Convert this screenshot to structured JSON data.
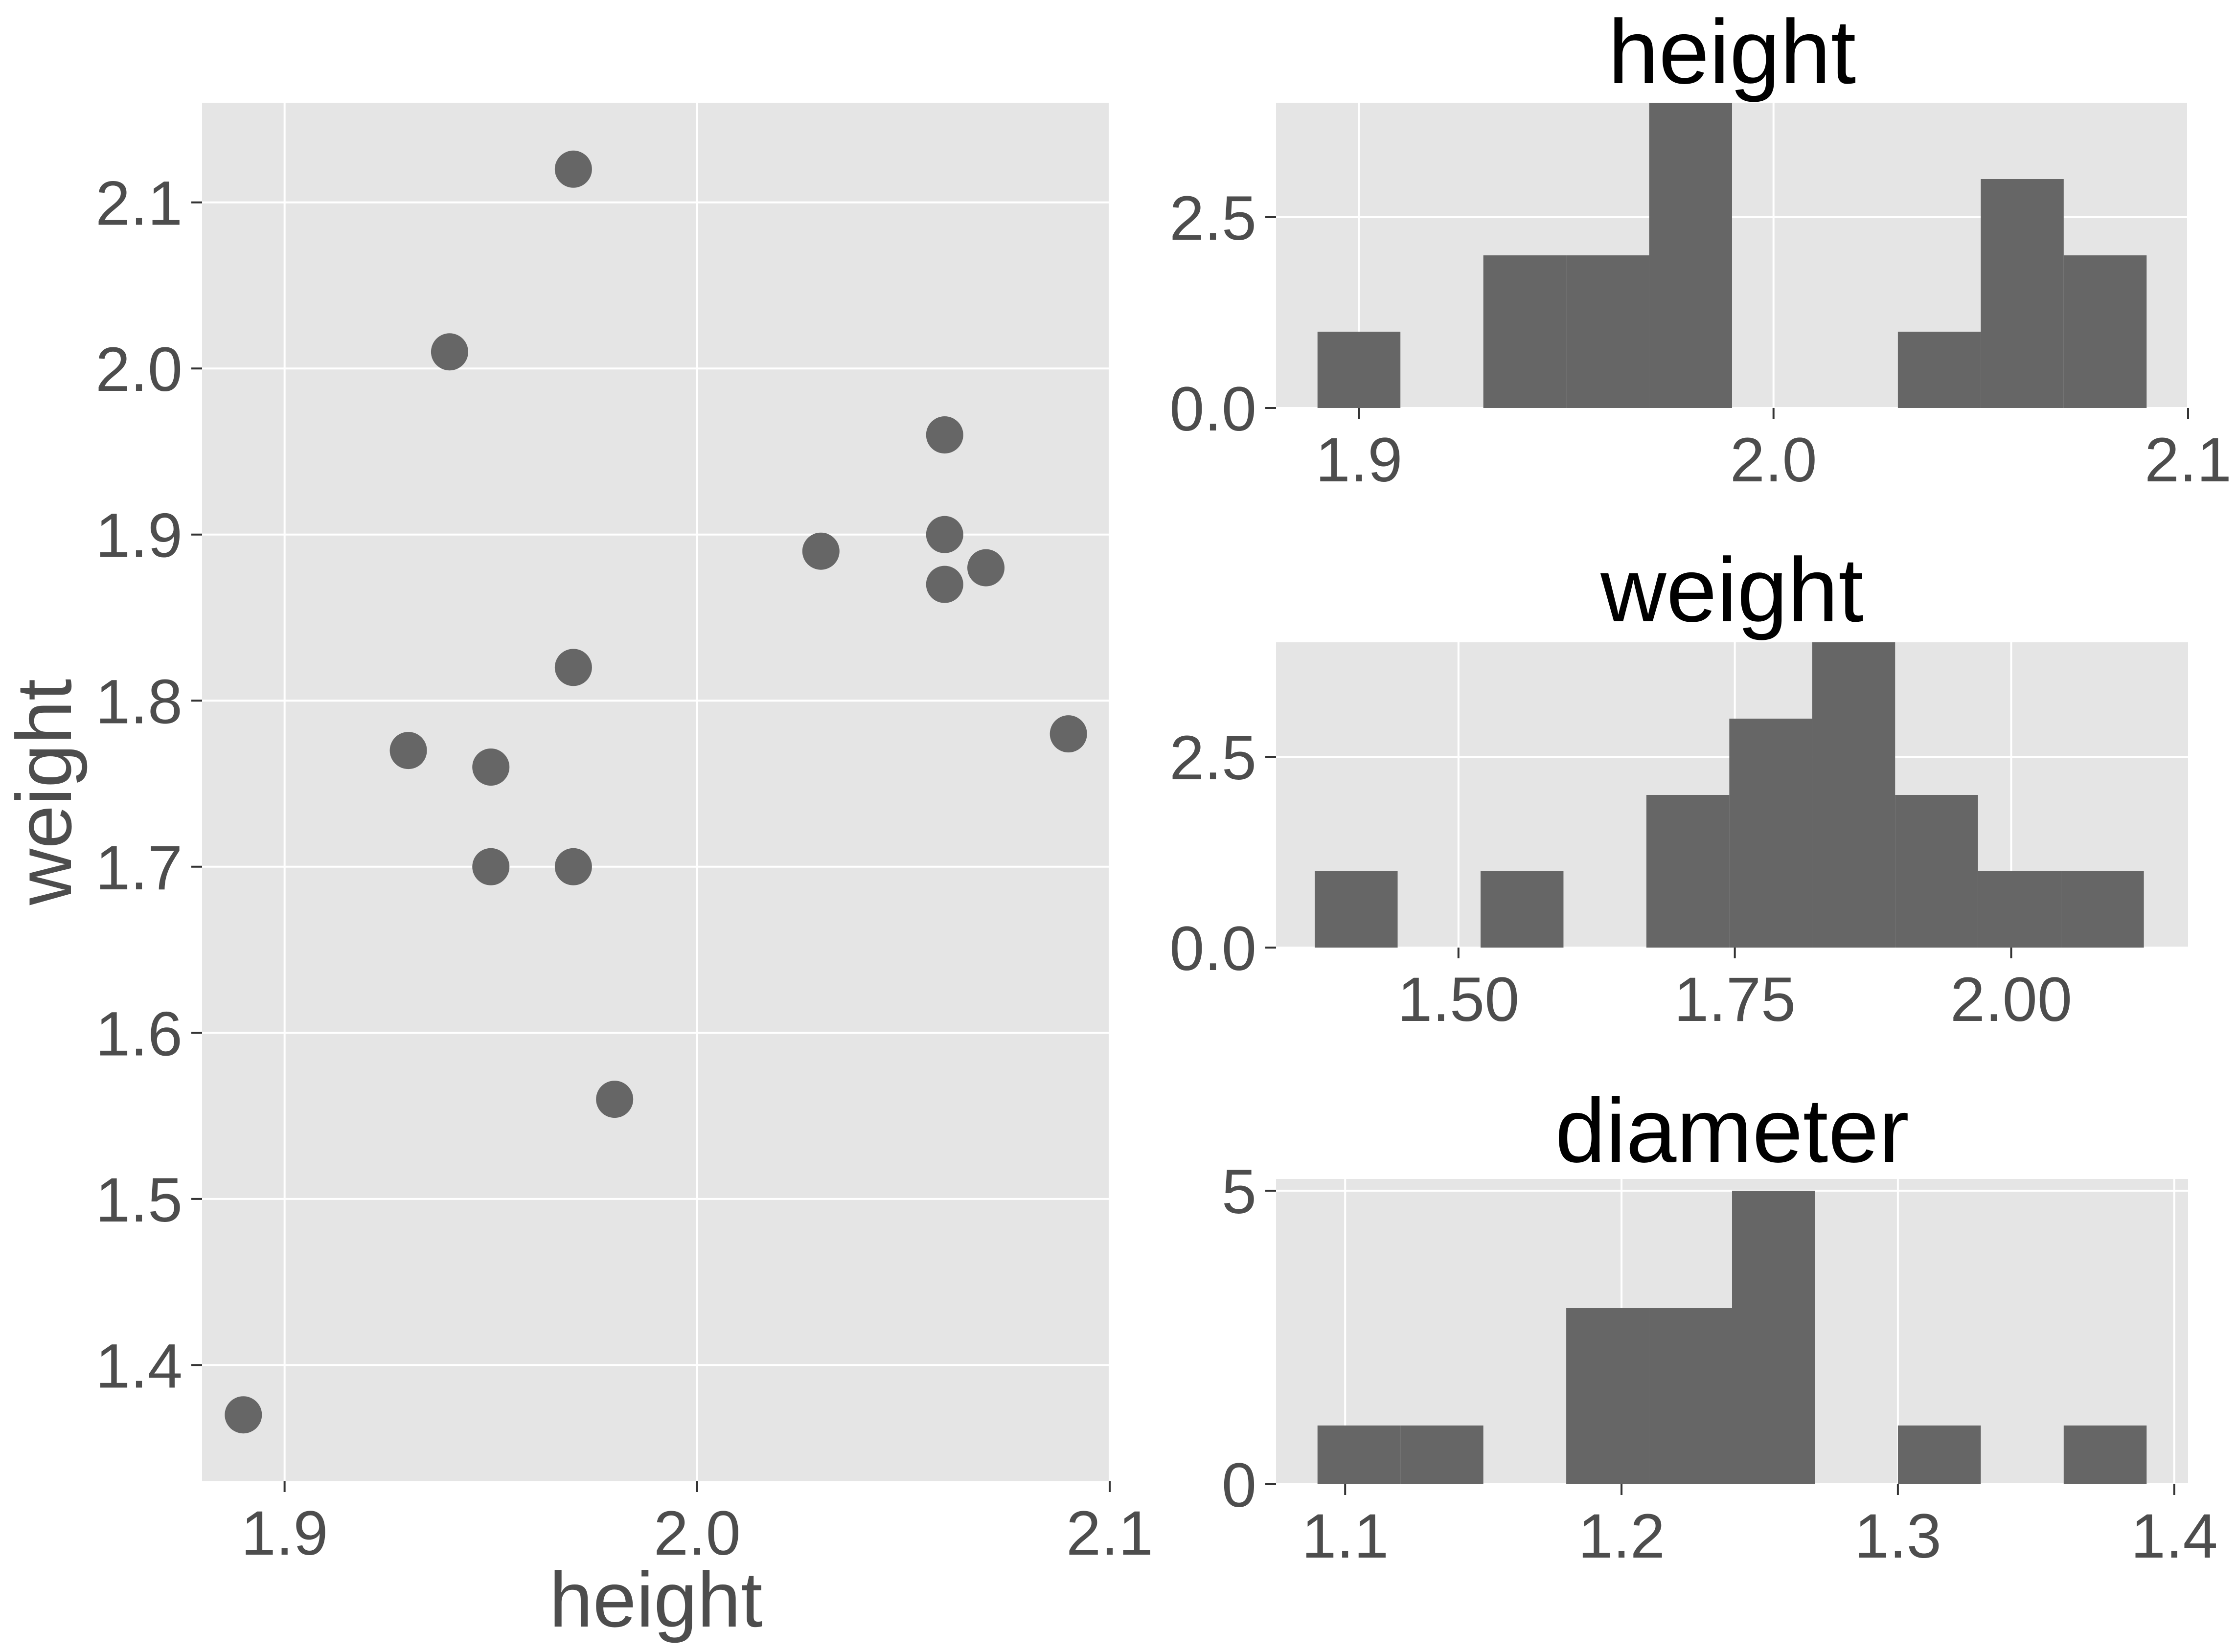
{
  "chart_data": [
    {
      "type": "scatter",
      "title": "",
      "xlabel": "height",
      "ylabel": "weight",
      "xlim": [
        1.88,
        2.1
      ],
      "ylim": [
        1.33,
        2.16
      ],
      "x_ticks": [
        1.9,
        2.0,
        2.1
      ],
      "x_tick_labels": [
        "1.9",
        "2.0",
        "2.1"
      ],
      "y_ticks": [
        1.4,
        1.5,
        1.6,
        1.7,
        1.8,
        1.9,
        2.0,
        2.1
      ],
      "y_tick_labels": [
        "1.4",
        "1.5",
        "1.6",
        "1.7",
        "1.8",
        "1.9",
        "2.0",
        "2.1"
      ],
      "grid": true,
      "points": [
        {
          "x": 1.89,
          "y": 1.37
        },
        {
          "x": 1.93,
          "y": 1.77
        },
        {
          "x": 1.94,
          "y": 2.01
        },
        {
          "x": 1.95,
          "y": 1.76
        },
        {
          "x": 1.95,
          "y": 1.7
        },
        {
          "x": 1.97,
          "y": 2.12
        },
        {
          "x": 1.97,
          "y": 1.82
        },
        {
          "x": 1.97,
          "y": 1.7
        },
        {
          "x": 1.98,
          "y": 1.56
        },
        {
          "x": 2.03,
          "y": 1.89
        },
        {
          "x": 2.06,
          "y": 1.96
        },
        {
          "x": 2.06,
          "y": 1.9
        },
        {
          "x": 2.06,
          "y": 1.87
        },
        {
          "x": 2.07,
          "y": 1.88
        },
        {
          "x": 2.09,
          "y": 1.78
        }
      ],
      "colors": {
        "point": "#666666",
        "panel": "#e5e5e5",
        "grid": "#ffffff"
      }
    },
    {
      "type": "bar",
      "subtype": "histogram",
      "title": "height",
      "xlabel": "",
      "ylabel": "",
      "xlim": [
        1.88,
        2.1
      ],
      "ylim": [
        0,
        4.0
      ],
      "x_ticks": [
        1.9,
        2.0,
        2.1
      ],
      "x_tick_labels": [
        "1.9",
        "2.0",
        "2.1"
      ],
      "y_ticks": [
        0,
        2.5
      ],
      "y_tick_labels": [
        "0.0",
        "2.5"
      ],
      "grid": true,
      "bins": [
        {
          "x0": 1.89,
          "x1": 1.91,
          "count": 1
        },
        {
          "x0": 1.91,
          "x1": 1.93,
          "count": 0
        },
        {
          "x0": 1.93,
          "x1": 1.95,
          "count": 2
        },
        {
          "x0": 1.95,
          "x1": 1.97,
          "count": 2
        },
        {
          "x0": 1.97,
          "x1": 1.99,
          "count": 4
        },
        {
          "x0": 1.99,
          "x1": 2.01,
          "count": 0
        },
        {
          "x0": 2.01,
          "x1": 2.03,
          "count": 0
        },
        {
          "x0": 2.03,
          "x1": 2.05,
          "count": 1
        },
        {
          "x0": 2.05,
          "x1": 2.07,
          "count": 3
        },
        {
          "x0": 2.07,
          "x1": 2.09,
          "count": 2
        }
      ],
      "colors": {
        "bar": "#666666"
      }
    },
    {
      "type": "bar",
      "subtype": "histogram",
      "title": "weight",
      "xlabel": "",
      "ylabel": "",
      "xlim": [
        1.335,
        2.16
      ],
      "ylim": [
        0,
        4.0
      ],
      "x_ticks": [
        1.5,
        1.75,
        2.0
      ],
      "x_tick_labels": [
        "1.50",
        "1.75",
        "2.00"
      ],
      "y_ticks": [
        0,
        2.5
      ],
      "y_tick_labels": [
        "0.0",
        "2.5"
      ],
      "grid": true,
      "bins": [
        {
          "x0": 1.37,
          "x1": 1.445,
          "count": 1
        },
        {
          "x0": 1.445,
          "x1": 1.52,
          "count": 0
        },
        {
          "x0": 1.52,
          "x1": 1.595,
          "count": 1
        },
        {
          "x0": 1.595,
          "x1": 1.67,
          "count": 0
        },
        {
          "x0": 1.67,
          "x1": 1.745,
          "count": 2
        },
        {
          "x0": 1.745,
          "x1": 1.82,
          "count": 3
        },
        {
          "x0": 1.82,
          "x1": 1.895,
          "count": 4
        },
        {
          "x0": 1.895,
          "x1": 1.97,
          "count": 2
        },
        {
          "x0": 1.97,
          "x1": 2.045,
          "count": 1
        },
        {
          "x0": 2.045,
          "x1": 2.12,
          "count": 1
        }
      ],
      "colors": {
        "bar": "#666666"
      }
    },
    {
      "type": "bar",
      "subtype": "histogram",
      "title": "diameter",
      "xlabel": "",
      "ylabel": "",
      "xlim": [
        1.075,
        1.405
      ],
      "ylim": [
        0,
        5.2
      ],
      "x_ticks": [
        1.1,
        1.2,
        1.3,
        1.4
      ],
      "x_tick_labels": [
        "1.1",
        "1.2",
        "1.3",
        "1.4"
      ],
      "y_ticks": [
        0,
        5
      ],
      "y_tick_labels": [
        "0",
        "5"
      ],
      "grid": true,
      "bins": [
        {
          "x0": 1.09,
          "x1": 1.12,
          "count": 1
        },
        {
          "x0": 1.12,
          "x1": 1.15,
          "count": 1
        },
        {
          "x0": 1.15,
          "x1": 1.18,
          "count": 0
        },
        {
          "x0": 1.18,
          "x1": 1.21,
          "count": 3
        },
        {
          "x0": 1.21,
          "x1": 1.24,
          "count": 3
        },
        {
          "x0": 1.24,
          "x1": 1.27,
          "count": 5
        },
        {
          "x0": 1.27,
          "x1": 1.3,
          "count": 0
        },
        {
          "x0": 1.3,
          "x1": 1.33,
          "count": 1
        },
        {
          "x0": 1.33,
          "x1": 1.36,
          "count": 0
        },
        {
          "x0": 1.36,
          "x1": 1.39,
          "count": 1
        }
      ],
      "colors": {
        "bar": "#666666"
      }
    }
  ]
}
